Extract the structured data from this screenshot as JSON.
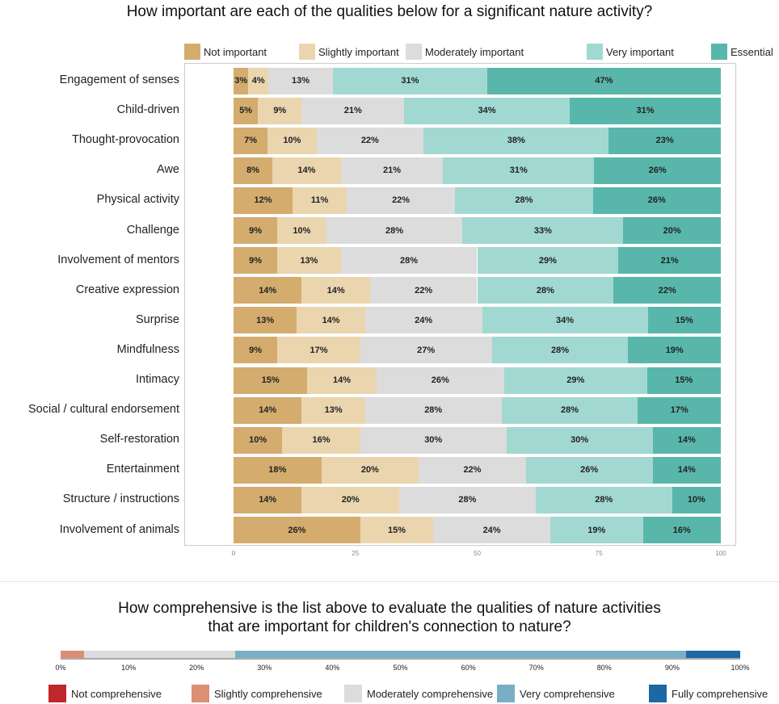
{
  "chart_data": [
    {
      "type": "bar",
      "orientation": "horizontal-stacked",
      "title": "How important are each of the qualities below for a significant nature activity?",
      "legend_position": "top",
      "series": [
        {
          "name": "Not important",
          "color": "#d4ac6e"
        },
        {
          "name": "Slightly important",
          "color": "#ead5ae"
        },
        {
          "name": "Moderately important",
          "color": "#dcdcdc"
        },
        {
          "name": "Very important",
          "color": "#a2d8d2"
        },
        {
          "name": "Essential",
          "color": "#58b7aa"
        }
      ],
      "categories": [
        "Engagement of senses",
        "Child-driven",
        "Thought-provocation",
        "Awe",
        "Physical activity",
        "Challenge",
        "Involvement of mentors",
        "Creative expression",
        "Surprise",
        "Mindfulness",
        "Intimacy",
        "Social / cultural endorsement",
        "Self-restoration",
        "Entertainment",
        "Structure / instructions",
        "Involvement of animals"
      ],
      "values": [
        [
          3,
          4,
          13,
          31,
          47
        ],
        [
          5,
          9,
          21,
          34,
          31
        ],
        [
          7,
          10,
          22,
          38,
          23
        ],
        [
          8,
          14,
          21,
          31,
          26
        ],
        [
          12,
          11,
          22,
          28,
          26
        ],
        [
          9,
          10,
          28,
          33,
          20
        ],
        [
          9,
          13,
          28,
          29,
          21
        ],
        [
          14,
          14,
          22,
          28,
          22
        ],
        [
          13,
          14,
          24,
          34,
          15
        ],
        [
          9,
          17,
          27,
          28,
          19
        ],
        [
          15,
          14,
          26,
          29,
          15
        ],
        [
          14,
          13,
          28,
          28,
          17
        ],
        [
          10,
          16,
          30,
          30,
          14
        ],
        [
          18,
          20,
          22,
          26,
          14
        ],
        [
          14,
          20,
          28,
          28,
          10
        ],
        [
          26,
          15,
          24,
          19,
          16
        ]
      ],
      "x_ticks": [
        "0",
        "25",
        "50",
        "75",
        "100"
      ],
      "xlim": [
        0,
        100
      ],
      "grid": false
    },
    {
      "type": "bar",
      "orientation": "horizontal-stacked",
      "title_lines": [
        "How comprehensive is the list above to evaluate the qualities of nature activities",
        "that are important for children's connection to nature?"
      ],
      "series": [
        {
          "name": "Not comprehensive",
          "color": "#c0272d",
          "value": 0
        },
        {
          "name": "Slightly comprehensive",
          "color": "#dc8f74",
          "value": 3.5
        },
        {
          "name": "Moderately comprehensive",
          "color": "#dcdcdc",
          "value": 22.2
        },
        {
          "name": "Very comprehensive",
          "color": "#79afc6",
          "value": 66.3
        },
        {
          "name": "Fully comprehensive",
          "color": "#1a68a4",
          "value": 8
        }
      ],
      "x_ticks": [
        "0%",
        "10%",
        "20%",
        "30%",
        "40%",
        "50%",
        "60%",
        "70%",
        "80%",
        "90%",
        "100%"
      ],
      "xlim": [
        0,
        100
      ],
      "legend_position": "bottom"
    }
  ]
}
